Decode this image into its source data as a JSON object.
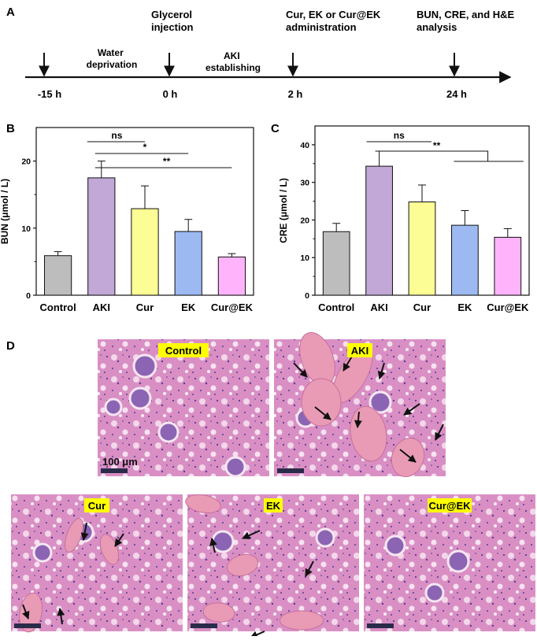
{
  "panels": {
    "A": "A",
    "B": "B",
    "C": "C",
    "D": "D"
  },
  "timeline": {
    "top_labels": [
      {
        "lines": [
          "Glycerol",
          "injection"
        ]
      },
      {
        "lines": [
          "Cur, EK or Cur@EK",
          "administration"
        ]
      },
      {
        "lines": [
          "BUN, CRE, and H&E",
          "analysis"
        ]
      }
    ],
    "interval_labels": [
      {
        "lines": [
          "Water",
          "deprivation"
        ]
      },
      {
        "lines": [
          "AKI",
          "establishing"
        ]
      }
    ],
    "time_labels": [
      "-15 h",
      "0 h",
      "2 h",
      "24 h"
    ]
  },
  "chart_data": [
    {
      "type": "bar",
      "panel": "B",
      "categories": [
        "Control",
        "AKI",
        "Cur",
        "EK",
        "Cur@EK"
      ],
      "values": [
        5.9,
        17.5,
        12.9,
        9.5,
        5.7
      ],
      "errors": [
        0.6,
        2.5,
        3.4,
        1.8,
        0.5
      ],
      "colors": [
        "#bdbdbd",
        "#c1a8d6",
        "#fdfd96",
        "#9db9f2",
        "#ffb3fb"
      ],
      "ylabel": "BUN (μmol / L)",
      "ylim": [
        0,
        25
      ],
      "yticks": [
        "0",
        "10",
        "20"
      ],
      "significance": [
        {
          "from": "AKI",
          "to": "Cur",
          "label": "ns"
        },
        {
          "from": "AKI",
          "to": "EK",
          "label": "*"
        },
        {
          "from": "AKI",
          "to": "Cur@EK",
          "label": "**"
        }
      ]
    },
    {
      "type": "bar",
      "panel": "C",
      "categories": [
        "Control",
        "AKI",
        "Cur",
        "EK",
        "Cur@EK"
      ],
      "values": [
        16.9,
        34.3,
        24.8,
        18.6,
        15.4
      ],
      "errors": [
        2.2,
        4.0,
        4.5,
        3.9,
        2.3
      ],
      "colors": [
        "#bdbdbd",
        "#c1a8d6",
        "#fdfd96",
        "#9db9f2",
        "#ffb3fb"
      ],
      "ylabel": "CRE (μmol / L)",
      "ylim": [
        0,
        45
      ],
      "yticks": [
        "0",
        "10",
        "20",
        "30",
        "40"
      ],
      "significance": [
        {
          "from": "AKI",
          "to": "Cur",
          "label": "ns"
        },
        {
          "from": "AKI",
          "to": "EK & Cur@EK",
          "label": "**"
        }
      ]
    }
  ],
  "histology": {
    "images": [
      {
        "label": "Control"
      },
      {
        "label": "AKI"
      },
      {
        "label": "Cur"
      },
      {
        "label": "EK"
      },
      {
        "label": "Cur@EK"
      }
    ],
    "scale_bar_label": "100 μm",
    "bg_color": "#d98fc4",
    "label_bg": "#ffff00"
  }
}
